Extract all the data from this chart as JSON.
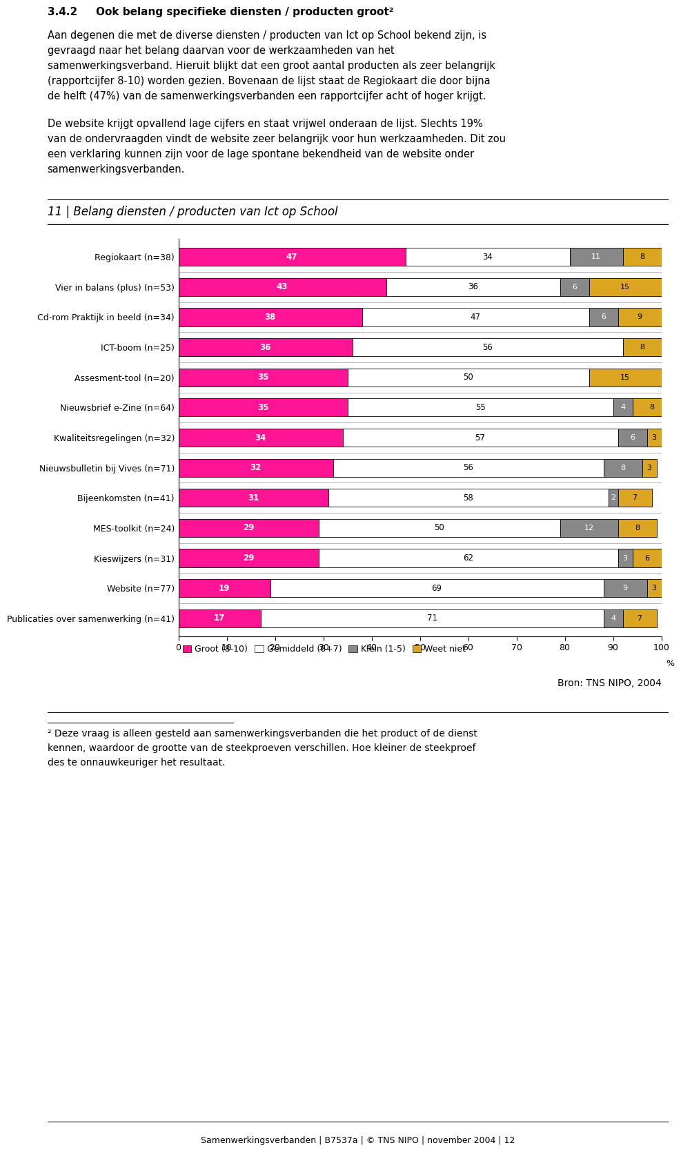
{
  "title_number": "11 | Belang diensten / producten van Ict op School",
  "categories": [
    "Regiokaart (n=38)",
    "Vier in balans (plus) (n=53)",
    "Cd-rom Praktijk in beeld (n=34)",
    "ICT-boom (n=25)",
    "Assesment-tool (n=20)",
    "Nieuwsbrief e-Zine (n=64)",
    "Kwaliteitsregelingen (n=32)",
    "Nieuwsbulletin bij Vives (n=71)",
    "Bijeenkomsten (n=41)",
    "MES-toolkit (n=24)",
    "Kieswijzers (n=31)",
    "Website (n=77)",
    "Publicaties over samenwerking (n=41)"
  ],
  "groot": [
    47,
    43,
    38,
    36,
    35,
    35,
    34,
    32,
    31,
    29,
    29,
    19,
    17
  ],
  "gemiddeld": [
    34,
    36,
    47,
    56,
    50,
    55,
    57,
    56,
    58,
    50,
    62,
    69,
    71
  ],
  "klein": [
    11,
    6,
    6,
    0,
    0,
    4,
    6,
    8,
    2,
    12,
    3,
    9,
    4
  ],
  "weet_niet": [
    8,
    15,
    9,
    8,
    15,
    8,
    3,
    3,
    7,
    8,
    6,
    3,
    7
  ],
  "color_groot": "#FF1493",
  "color_gemiddeld": "#FFFFFF",
  "color_klein": "#888888",
  "color_weet_niet": "#DAA520",
  "legend_labels": [
    "Groot (8-10)",
    "Gemiddeld (6+7)",
    "Klein (1-5)",
    "Weet niet"
  ],
  "xlim": [
    0,
    100
  ],
  "xticks": [
    0,
    10,
    20,
    30,
    40,
    50,
    60,
    70,
    80,
    90,
    100
  ],
  "source": "Bron: TNS NIPO, 2004",
  "footer": "Samenwerkingsverbanden | B7537a | © TNS NIPO | november 2004 | 12",
  "background_color": "#FFFFFF",
  "bar_edge_color": "#000000",
  "bar_height": 0.6
}
